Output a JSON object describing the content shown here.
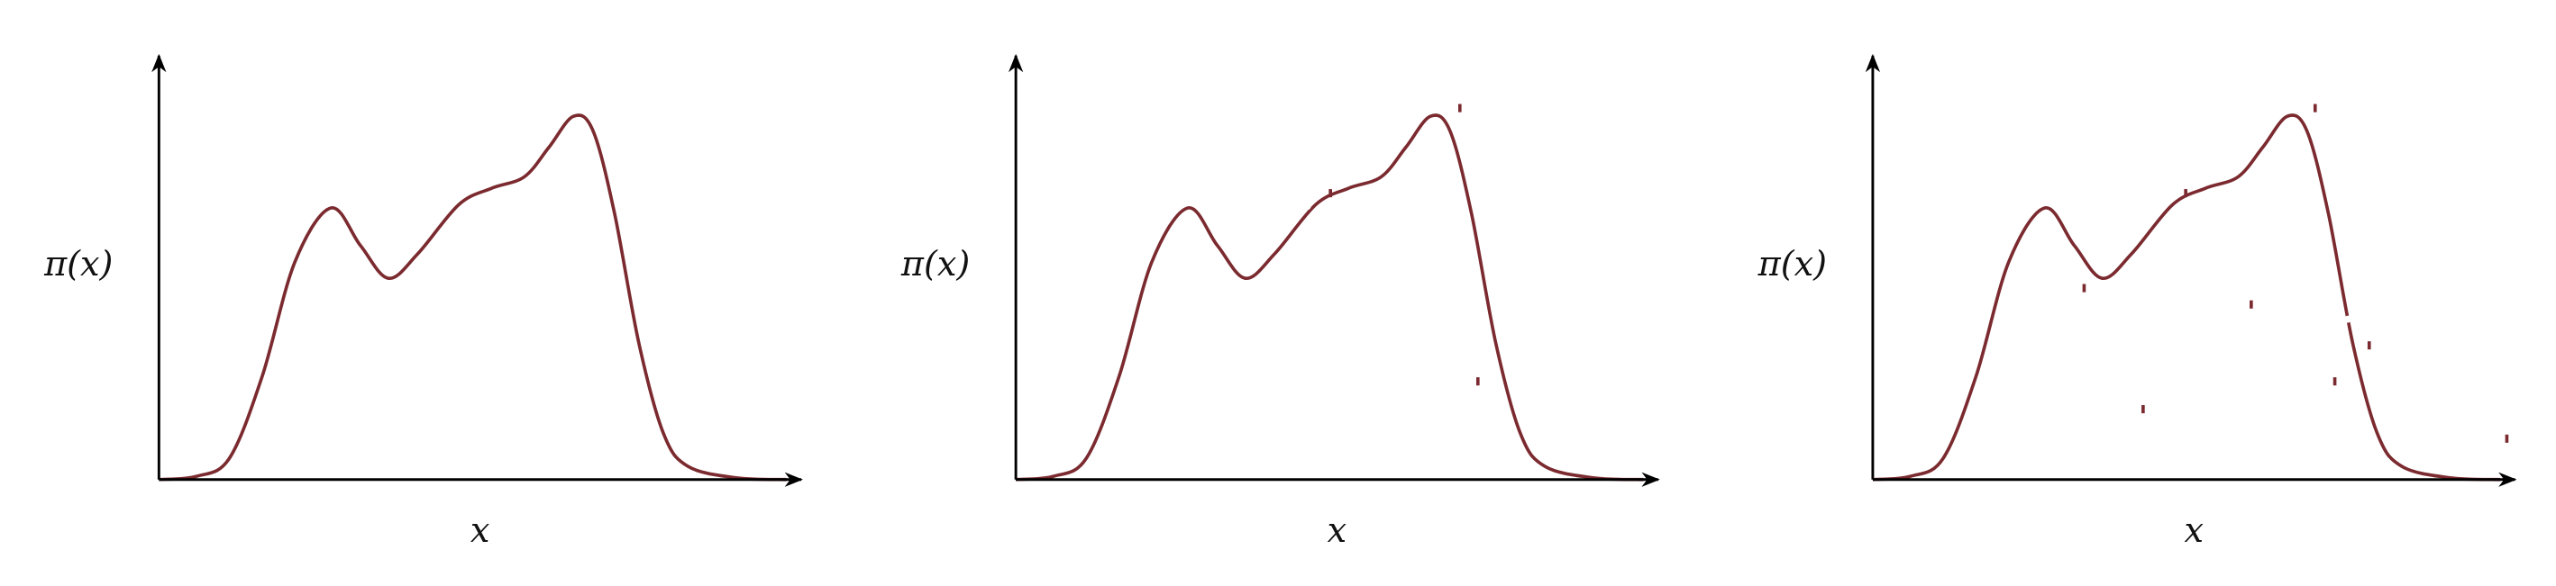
{
  "panels": [
    {
      "y_label": "π(x)",
      "x_label": "x"
    },
    {
      "y_label": "π(x)",
      "x_label": "x"
    },
    {
      "y_label": "π(x)",
      "x_label": "x"
    }
  ]
}
